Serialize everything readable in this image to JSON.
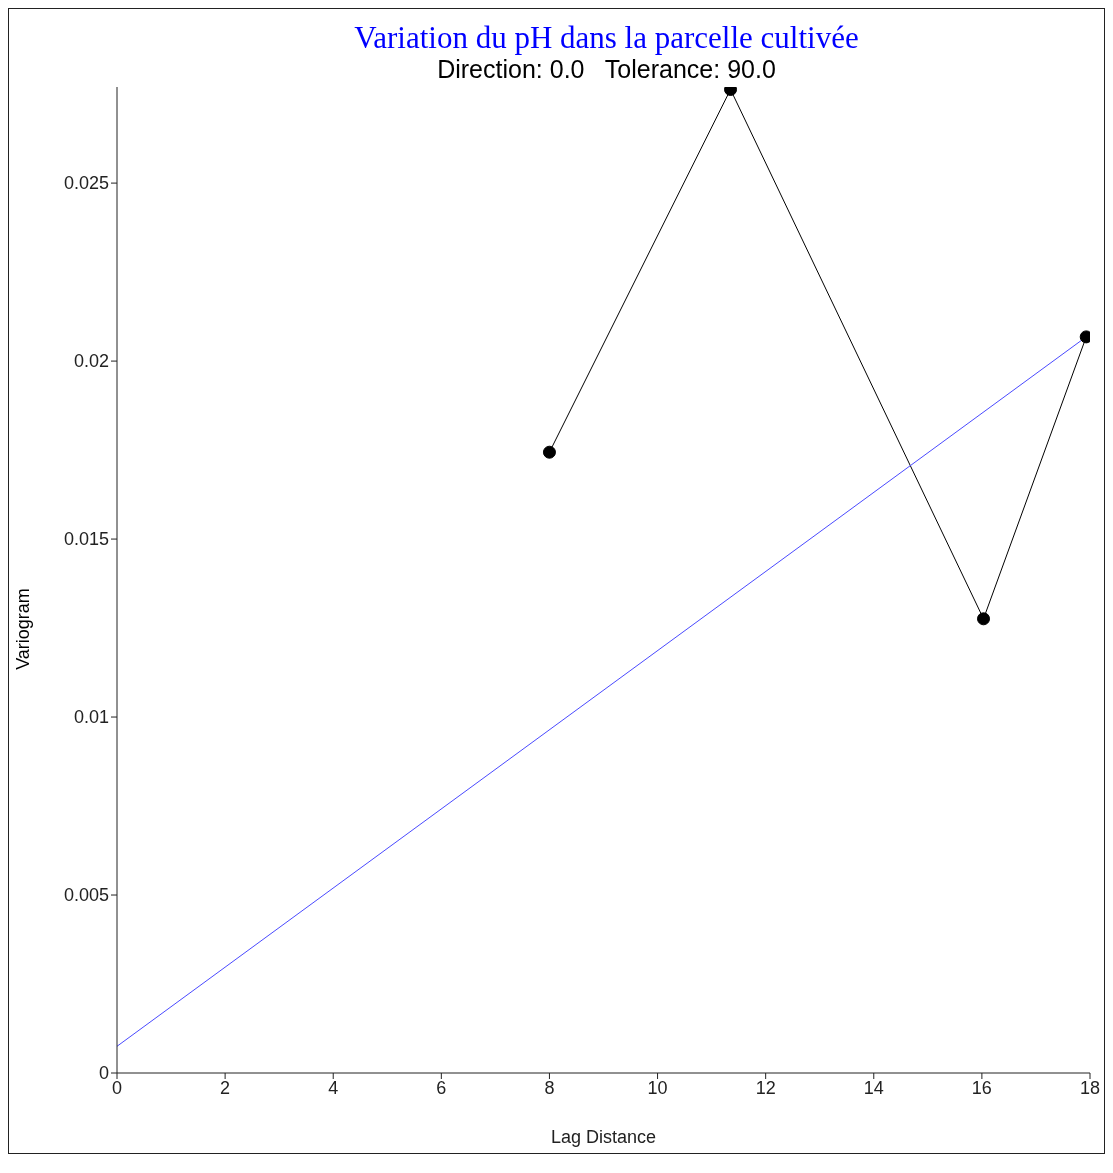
{
  "chart_data": {
    "type": "line",
    "title": "Variation du pH dans la parcelle cultivée",
    "subtitle": "Direction: 0.0   Tolerance: 90.0",
    "xlabel": "Lag Distance",
    "ylabel": "Variogram",
    "xlim": [
      0,
      18
    ],
    "xticks": [
      0,
      2,
      4,
      6,
      8,
      10,
      12,
      14,
      16,
      18
    ],
    "ylim": [
      0,
      0.0277
    ],
    "yticks": [
      0,
      0.005,
      0.01,
      0.015,
      0.02,
      0.025
    ],
    "grid": false,
    "series": [
      {
        "color": "#000000",
        "marker": "circle",
        "x": [
          8.0,
          11.35,
          16.03,
          17.93
        ],
        "values": [
          0.01744,
          0.02763,
          0.01276,
          0.02068
        ]
      },
      {
        "color": "#4a4aff",
        "marker": "none",
        "x": [
          0,
          17.93
        ],
        "values": [
          0.00075,
          0.02068
        ]
      }
    ]
  }
}
